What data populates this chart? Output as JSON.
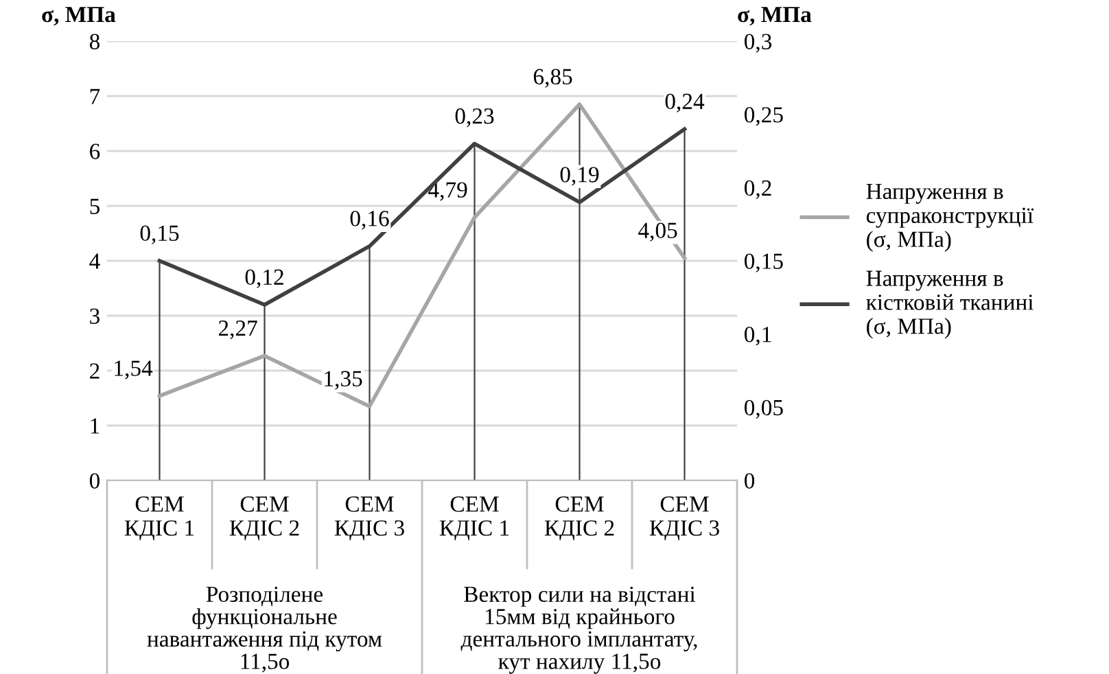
{
  "chart_data": {
    "type": "line",
    "categories": [
      "СЕМ\nКДІС 1",
      "СЕМ\nКДІС 2",
      "СЕМ\nКДІС 3",
      "СЕМ\nКДІС 1",
      "СЕМ\nКДІС 2",
      "СЕМ\nКДІС 3"
    ],
    "ylabel": "σ, МПа",
    "y2label": "σ, МПа",
    "series": [
      {
        "name": "Напруження в супраконструкції (σ, МПа)",
        "color": "#a6a6a6",
        "values": [
          1.54,
          2.27,
          1.35,
          4.79,
          6.85,
          4.05
        ],
        "value_labels": [
          "1,54",
          "2,27",
          "1,35",
          "4,79",
          "6,85",
          "4,05"
        ]
      },
      {
        "name": "Напруження в кістковій тканині (σ, МПа)",
        "color": "#404040",
        "axis": "y2",
        "values": [
          0.15,
          0.12,
          0.16,
          0.23,
          0.19,
          0.24
        ],
        "value_labels": [
          "0,15",
          "0,12",
          "0,16",
          "0,23",
          "0,19",
          "0,24"
        ]
      }
    ],
    "ylim": [
      0,
      8
    ],
    "yticks": [
      0,
      1,
      2,
      3,
      4,
      5,
      6,
      7,
      8
    ],
    "y2lim": [
      0,
      0.3
    ],
    "y2ticks": [
      0,
      {
        "value": 0.05,
        "label": "0,05"
      },
      {
        "value": 0.1,
        "label": "0,1"
      },
      {
        "value": 0.15,
        "label": "0,15"
      },
      {
        "value": 0.2,
        "label": "0,2"
      },
      {
        "value": 0.25,
        "label": "0,25"
      },
      {
        "value": 0.3,
        "label": "0,3"
      }
    ],
    "annotations": [
      "Розподілене\nфункціональне\nнавантаження під кутом\n11,5о",
      "Вектор сили на відстані\n15мм від крайнього\nдентального імплантату,\nкут нахилу 11,5о"
    ],
    "grid": true,
    "legend": "right",
    "marker": "none",
    "line_style": "solid"
  }
}
